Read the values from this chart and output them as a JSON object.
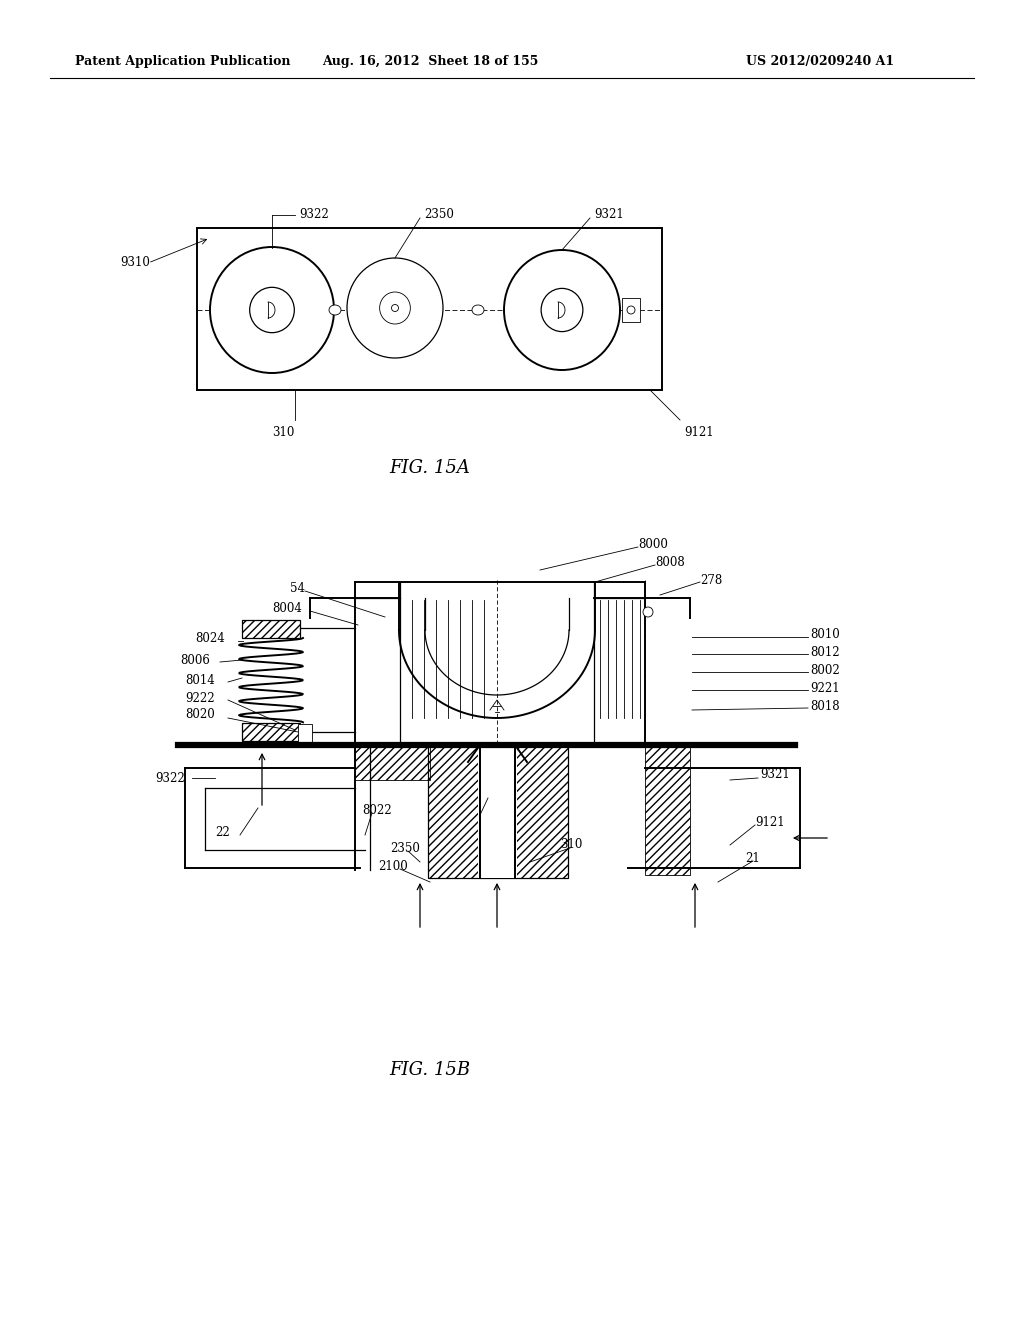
{
  "bg_color": "#ffffff",
  "line_color": "#000000",
  "fig15a_label": "FIG. 15A",
  "fig15b_label": "FIG. 15B",
  "header1": "Patent Application Publication",
  "header2": "Aug. 16, 2012  Sheet 18 of 155",
  "header3": "US 2012/0209240 A1"
}
